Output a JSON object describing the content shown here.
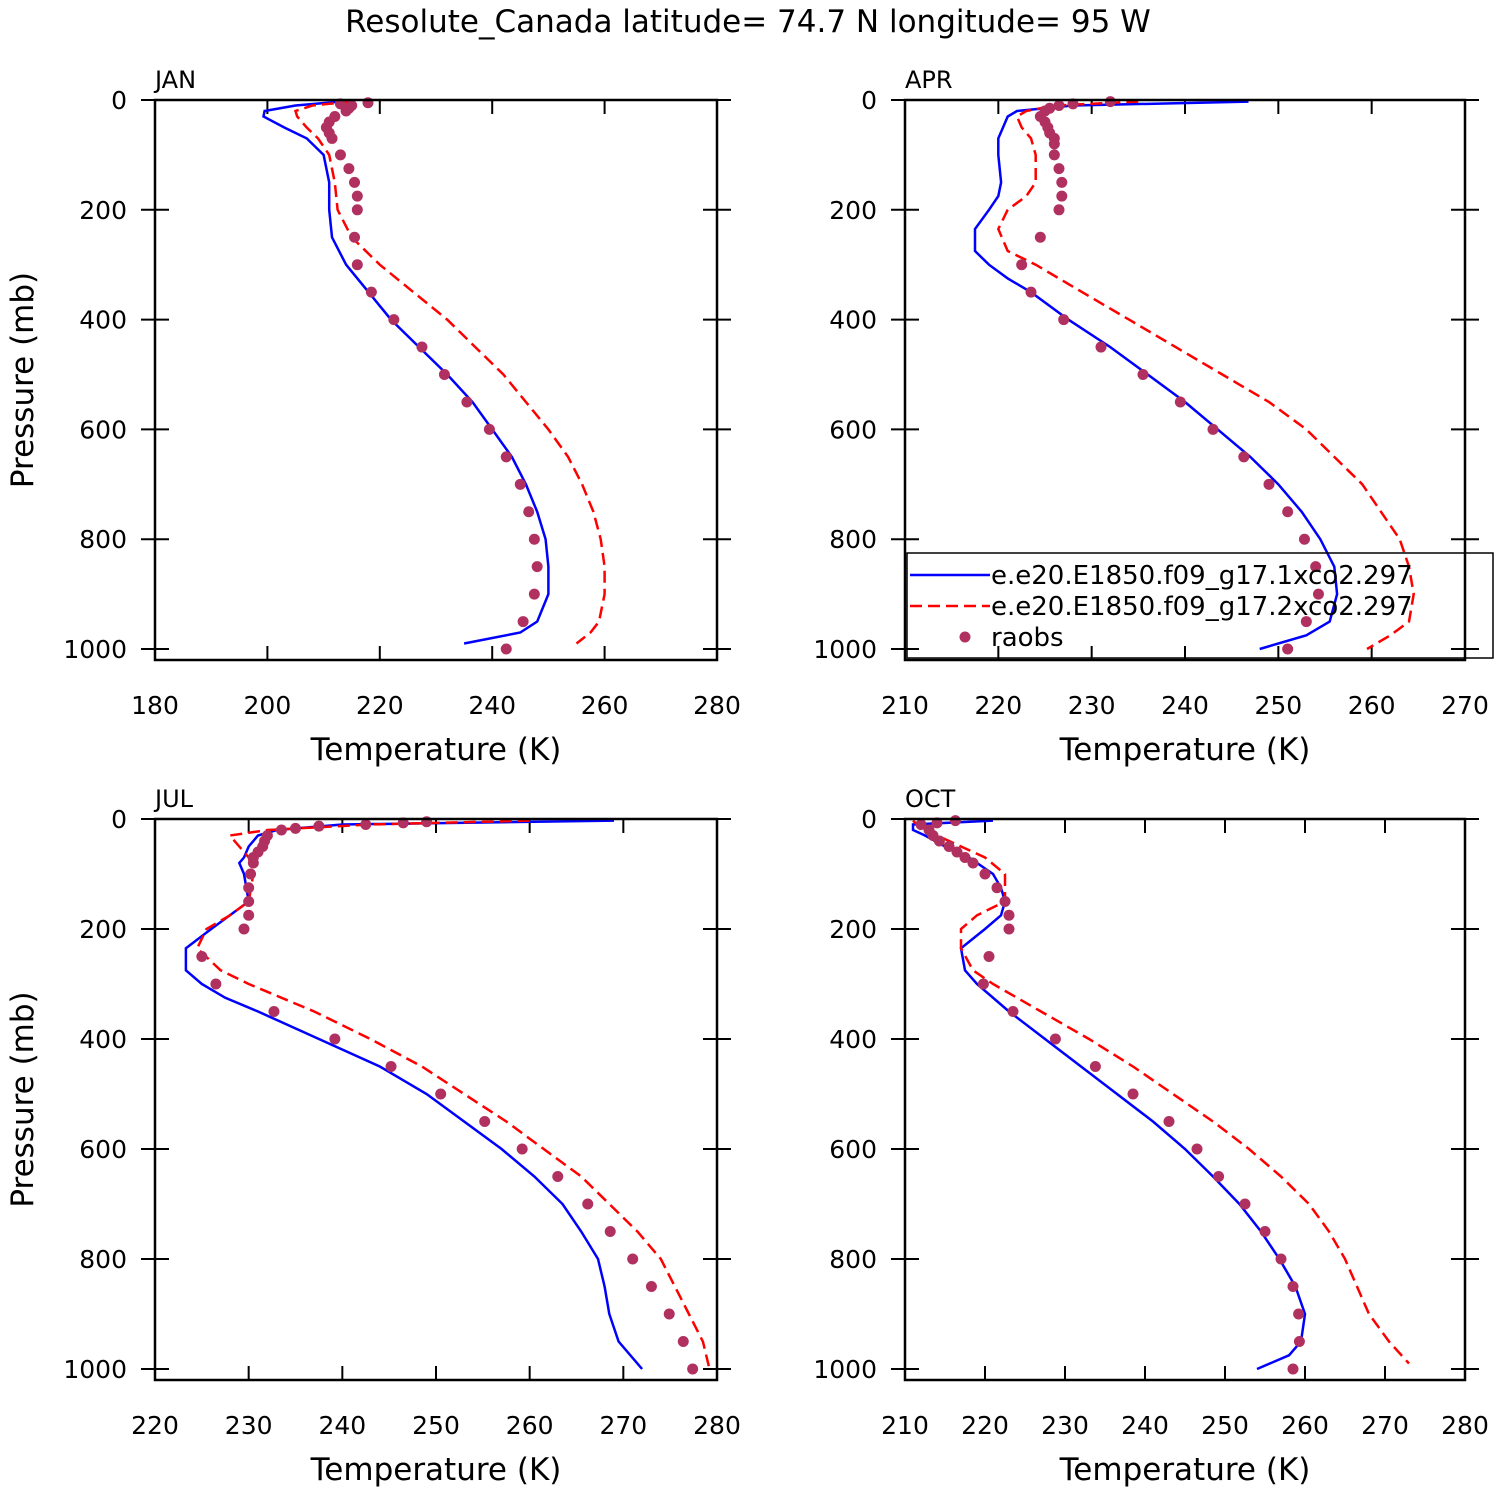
{
  "title": "Resolute_Canada  latitude= 74.7 N longitude= 95 W",
  "chart_data": [
    {
      "type": "line",
      "title": "JAN",
      "xlabel": "Temperature (K)",
      "ylabel": "Pressure (mb)",
      "xlim": [
        180,
        280
      ],
      "xticks": [
        180,
        200,
        220,
        240,
        260,
        280
      ],
      "ylim": [
        1020,
        0
      ],
      "yticks": [
        0,
        200,
        400,
        600,
        800,
        1000
      ],
      "legend": false,
      "series": [
        {
          "color": "#0000ff",
          "style": "solid",
          "pressure": [
            3,
            10,
            20,
            30,
            50,
            70,
            100,
            150,
            200,
            250,
            300,
            350,
            400,
            450,
            500,
            550,
            600,
            650,
            700,
            750,
            800,
            850,
            900,
            950,
            970,
            990
          ],
          "temperature": [
            213,
            205,
            199.5,
            199.3,
            203,
            207,
            210,
            211,
            211,
            211.5,
            214,
            218,
            222,
            227,
            232,
            236.5,
            240,
            243.5,
            246,
            248,
            249.5,
            250,
            250,
            248,
            245,
            235
          ]
        },
        {
          "color": "#ff0000",
          "style": "dashed",
          "pressure": [
            3,
            10,
            20,
            30,
            50,
            70,
            100,
            150,
            200,
            250,
            300,
            350,
            400,
            450,
            500,
            550,
            600,
            650,
            700,
            750,
            800,
            850,
            900,
            950,
            970,
            990
          ],
          "temperature": [
            215,
            208,
            205,
            205.3,
            207,
            209,
            211,
            212,
            212.5,
            215,
            220,
            226,
            232,
            237,
            242,
            246,
            250,
            253.5,
            256,
            258,
            259.3,
            260,
            260,
            259,
            257.5,
            255
          ]
        },
        {
          "color": "#b03060",
          "style": "dots",
          "pressure": [
            5,
            7,
            10,
            15,
            20,
            30,
            40,
            50,
            60,
            70,
            100,
            125,
            150,
            175,
            200,
            250,
            300,
            350,
            400,
            450,
            500,
            550,
            600,
            650,
            700,
            750,
            800,
            850,
            900,
            950,
            1000
          ],
          "temperature": [
            217.9,
            213,
            215,
            214.5,
            214,
            212,
            211,
            210.5,
            211,
            211.5,
            213,
            214.5,
            215.5,
            216,
            216,
            215.5,
            216,
            218.5,
            222.5,
            227.5,
            231.5,
            235.5,
            239.5,
            242.5,
            245,
            246.5,
            247.5,
            248,
            247.5,
            245.5,
            242.5
          ]
        }
      ]
    },
    {
      "type": "line",
      "title": "APR",
      "xlabel": "Temperature (K)",
      "xlim": [
        210,
        270
      ],
      "xticks": [
        210,
        220,
        230,
        240,
        250,
        260,
        270
      ],
      "ylim": [
        1020,
        0
      ],
      "yticks": [
        0,
        200,
        400,
        600,
        800,
        1000
      ],
      "legend": true,
      "series": [
        {
          "name": "e.e20.E1850.f09_g17.1xco2.297",
          "color": "#0000ff",
          "style": "solid",
          "pressure": [
            3,
            10,
            20,
            30,
            50,
            70,
            100,
            150,
            175,
            200,
            235,
            275,
            300,
            325,
            350,
            400,
            450,
            500,
            550,
            600,
            650,
            700,
            750,
            800,
            850,
            900,
            950,
            975,
            1000
          ],
          "temperature": [
            246.8,
            228,
            222,
            221,
            220.5,
            220,
            220,
            220.3,
            220,
            219,
            217.5,
            217.5,
            219,
            221,
            223.5,
            227.5,
            232,
            236,
            240,
            243.5,
            247,
            250,
            252.5,
            254.5,
            256,
            256.3,
            255.5,
            253,
            248
          ]
        },
        {
          "name": "e.e20.E1850.f09_g17.2xco2.297",
          "color": "#ff0000",
          "style": "dashed",
          "pressure": [
            3,
            10,
            20,
            30,
            50,
            70,
            100,
            150,
            175,
            200,
            235,
            275,
            300,
            350,
            400,
            450,
            500,
            550,
            600,
            650,
            700,
            750,
            800,
            850,
            900,
            950,
            975,
            1000
          ],
          "temperature": [
            235,
            226,
            223,
            222,
            222.5,
            223.5,
            224,
            224,
            223,
            221,
            220,
            221,
            224,
            229,
            234,
            239,
            244,
            249,
            253,
            256,
            259,
            261,
            263,
            264,
            264.5,
            264,
            262,
            259.5
          ]
        },
        {
          "name": "raobs",
          "color": "#b03060",
          "style": "dots",
          "pressure": [
            3,
            7,
            10,
            15,
            20,
            30,
            40,
            50,
            60,
            70,
            80,
            100,
            125,
            150,
            175,
            200,
            250,
            300,
            350,
            400,
            450,
            500,
            550,
            600,
            650,
            700,
            750,
            800,
            850,
            900,
            950,
            1000
          ],
          "temperature": [
            232,
            228,
            226.5,
            225.5,
            225,
            224.5,
            225,
            225.3,
            225.5,
            226,
            226,
            226,
            226.5,
            226.8,
            226.8,
            226.5,
            224.5,
            222.5,
            223.5,
            227,
            231,
            235.5,
            239.5,
            243,
            246.3,
            249,
            251,
            252.8,
            254,
            254.3,
            253,
            251
          ]
        }
      ]
    },
    {
      "type": "line",
      "title": "JUL",
      "xlabel": "Temperature (K)",
      "ylabel": "Pressure (mb)",
      "xlim": [
        220,
        280
      ],
      "xticks": [
        220,
        230,
        240,
        250,
        260,
        270,
        280
      ],
      "ylim": [
        1020,
        0
      ],
      "yticks": [
        0,
        200,
        400,
        600,
        800,
        1000
      ],
      "legend": false,
      "series": [
        {
          "color": "#0000ff",
          "style": "solid",
          "pressure": [
            3,
            10,
            20,
            30,
            50,
            70,
            80,
            100,
            150,
            175,
            200,
            235,
            275,
            300,
            325,
            350,
            400,
            450,
            500,
            550,
            600,
            650,
            700,
            750,
            800,
            850,
            900,
            950,
            1000
          ],
          "temperature": [
            269,
            240,
            233,
            231,
            230,
            229.5,
            229,
            229.5,
            230,
            228,
            226,
            223.3,
            223.3,
            225,
            227.5,
            231,
            237.5,
            244,
            249,
            253,
            257,
            260.5,
            263.5,
            265.5,
            267.3,
            268,
            268.5,
            269.5,
            272
          ]
        },
        {
          "color": "#ff0000",
          "style": "dashed",
          "pressure": [
            3,
            10,
            20,
            30,
            50,
            70,
            100,
            150,
            175,
            200,
            235,
            275,
            300,
            350,
            400,
            450,
            500,
            550,
            600,
            650,
            700,
            750,
            800,
            850,
            900,
            950,
            1000
          ],
          "temperature": [
            260,
            243,
            232,
            228,
            229,
            230,
            230.5,
            230,
            228,
            225.5,
            224.5,
            227,
            230,
            237,
            243,
            248.5,
            253,
            257.5,
            261.5,
            265.5,
            268.5,
            271.5,
            274,
            275.5,
            277,
            278.5,
            279.2
          ]
        },
        {
          "color": "#b03060",
          "style": "dots",
          "pressure": [
            5,
            7,
            10,
            13,
            17,
            20,
            30,
            40,
            50,
            60,
            70,
            80,
            100,
            125,
            150,
            175,
            200,
            250,
            300,
            350,
            400,
            450,
            500,
            550,
            600,
            650,
            700,
            750,
            800,
            850,
            900,
            950,
            1000
          ],
          "temperature": [
            249,
            246.5,
            242.5,
            237.5,
            235,
            233.5,
            232,
            231.7,
            231.5,
            231,
            230.5,
            230.5,
            230.2,
            230,
            230,
            230,
            229.5,
            225,
            226.5,
            232.7,
            239.2,
            245.2,
            250.5,
            255.2,
            259.2,
            263,
            266.2,
            268.6,
            271,
            273,
            274.9,
            276.4,
            277.4
          ]
        }
      ]
    },
    {
      "type": "line",
      "title": "OCT",
      "xlabel": "Temperature (K)",
      "xlim": [
        210,
        280
      ],
      "xticks": [
        210,
        220,
        230,
        240,
        250,
        260,
        270,
        280
      ],
      "ylim": [
        1020,
        0
      ],
      "yticks": [
        0,
        200,
        400,
        600,
        800,
        1000
      ],
      "legend": false,
      "series": [
        {
          "color": "#0000ff",
          "style": "solid",
          "pressure": [
            3,
            10,
            20,
            30,
            50,
            70,
            100,
            125,
            150,
            175,
            200,
            235,
            275,
            300,
            350,
            400,
            450,
            500,
            550,
            600,
            650,
            700,
            750,
            800,
            850,
            900,
            950,
            975,
            1000
          ],
          "temperature": [
            221,
            211,
            211,
            212.5,
            215,
            218,
            221,
            222,
            222.5,
            222,
            220,
            217,
            217.5,
            219,
            223,
            227.5,
            232,
            236.5,
            241,
            245,
            248.5,
            251.8,
            254.5,
            256.8,
            258.8,
            260,
            259.5,
            258,
            254
          ]
        },
        {
          "color": "#ff0000",
          "style": "dashed",
          "pressure": [
            3,
            10,
            20,
            30,
            50,
            70,
            100,
            150,
            175,
            200,
            235,
            275,
            300,
            350,
            400,
            450,
            500,
            550,
            600,
            650,
            700,
            750,
            800,
            850,
            900,
            950,
            990
          ],
          "temperature": [
            211,
            211.5,
            212,
            214,
            217,
            220,
            222.5,
            222.5,
            219,
            217,
            217,
            218.5,
            221,
            227,
            233,
            238.5,
            243.5,
            248.5,
            253,
            257,
            260.5,
            263,
            265,
            266.5,
            268,
            270.5,
            273
          ]
        },
        {
          "color": "#b03060",
          "style": "dots",
          "pressure": [
            3,
            7,
            10,
            20,
            30,
            40,
            50,
            60,
            70,
            80,
            100,
            125,
            150,
            175,
            200,
            250,
            300,
            350,
            400,
            450,
            500,
            550,
            600,
            650,
            700,
            750,
            800,
            850,
            900,
            950,
            1000
          ],
          "temperature": [
            216.3,
            214,
            212,
            213,
            213.5,
            214.3,
            215.5,
            216.5,
            217.5,
            218.5,
            220,
            221.5,
            222.5,
            223,
            223,
            220.5,
            219.8,
            223.5,
            228.8,
            233.8,
            238.5,
            243,
            246.5,
            249.2,
            252.5,
            255,
            257,
            258.5,
            259.2,
            259.3,
            258.5
          ]
        }
      ]
    }
  ]
}
